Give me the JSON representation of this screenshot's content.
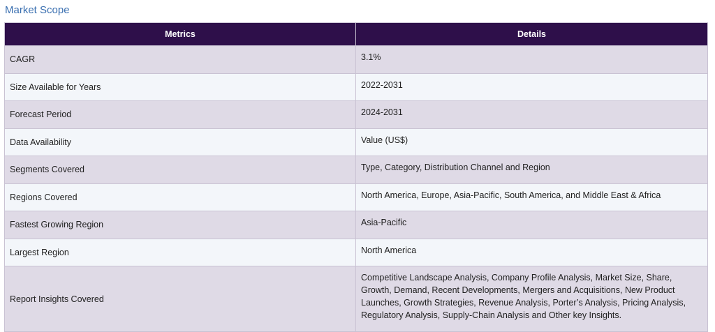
{
  "section": {
    "title": "Market Scope"
  },
  "table": {
    "headers": {
      "metric": "Metrics",
      "detail": "Details"
    },
    "rows": [
      {
        "metric": "CAGR",
        "detail": "3.1%"
      },
      {
        "metric": "Size Available for Years",
        "detail": "2022-2031"
      },
      {
        "metric": "Forecast Period",
        "detail": "2024-2031"
      },
      {
        "metric": "Data Availability",
        "detail": "Value (US$)"
      },
      {
        "metric": "Segments Covered",
        "detail": "Type, Category, Distribution Channel and Region"
      },
      {
        "metric": "Regions Covered",
        "detail": "North America, Europe, Asia-Pacific, South America, and Middle East & Africa"
      },
      {
        "metric": "Fastest Growing Region",
        "detail": "Asia-Pacific"
      },
      {
        "metric": "Largest Region",
        "detail": "North America"
      },
      {
        "metric": "Report Insights Covered",
        "detail": "Competitive Landscape Analysis, Company Profile Analysis, Market Size, Share, Growth, Demand, Recent Developments, Mergers and Acquisitions, New Product Launches, Growth Strategies, Revenue Analysis, Porter’s Analysis, Pricing Analysis, Regulatory Analysis, Supply-Chain Analysis and Other key Insights."
      }
    ]
  },
  "colors": {
    "header_bg": "#2e0f4a",
    "title": "#3a6fb0",
    "row_odd": "#dfdae6",
    "row_even": "#f3f6fa"
  }
}
